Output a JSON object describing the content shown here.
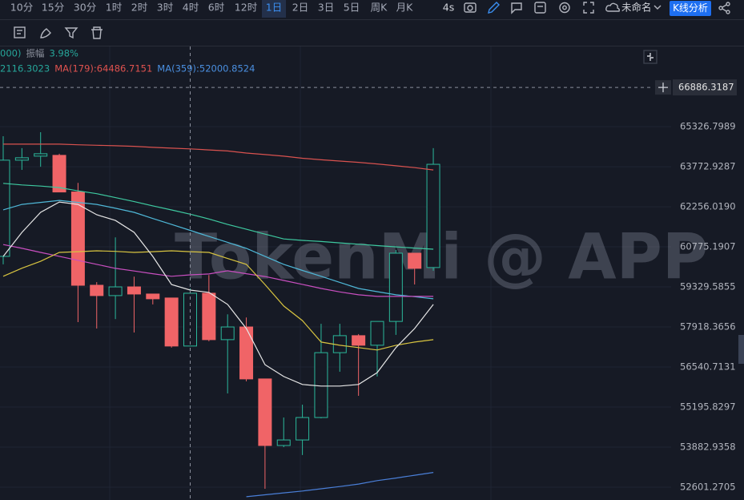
{
  "toolbar": {
    "intervals": [
      "10分",
      "15分",
      "30分",
      "1时",
      "2时",
      "3时",
      "4时",
      "6时",
      "12时",
      "1日",
      "2日",
      "3日",
      "5日",
      "周K",
      "月K"
    ],
    "selected_index": 9,
    "refresh": "4s",
    "layout_name": "未命名",
    "analysis_button": "K线分析"
  },
  "info": {
    "row1": [
      "000)",
      "振幅",
      "3.98%"
    ],
    "row2": [
      "2116.3023",
      "MA(179):64486.7151",
      "MA(359):52000.8524"
    ]
  },
  "chart_data": {
    "type": "candlestick",
    "watermark": "TokenMi @ APP",
    "log_scale": true,
    "grid": true,
    "ylim": [
      52197,
      68553
    ],
    "yticks": [
      52601.2705,
      53882.9358,
      55195.8297,
      56540.7131,
      57918.3656,
      59329.5855,
      60775.1907,
      {
        "value": 62256.019,
        "label": "62256.0190"
      },
      63772.9287,
      65326.7989
    ],
    "crosshair": 66886.3187,
    "up_color": "#2bb89b",
    "down_color": "#f06467",
    "open": [
      60428,
      64025,
      64180,
      64211,
      62813,
      59388,
      59020,
      59330,
      59076,
      58935,
      57258,
      59104,
      57478,
      57918,
      56137,
      53935,
      54115,
      54850,
      57030,
      57616,
      57285,
      58111,
      60544,
      60024
    ],
    "high": [
      64955,
      64490,
      65110,
      64273,
      63156,
      59500,
      61122,
      59697,
      59076,
      58935,
      59274,
      59754,
      58359,
      58249,
      56137,
      54850,
      55275,
      58028,
      58028,
      57671,
      58111,
      60660,
      60544,
      64490
    ],
    "low": [
      60139,
      63653,
      63773,
      62813,
      58087,
      57863,
      58193,
      57726,
      58708,
      57203,
      57258,
      57423,
      55650,
      56057,
      52550,
      53883,
      53627,
      54824,
      56380,
      55570,
      56218,
      57643,
      59415,
      59909
    ],
    "close": [
      64025,
      64118,
      64273,
      62813,
      59388,
      59020,
      59330,
      59076,
      58907,
      57258,
      59104,
      57478,
      57918,
      56137,
      53935,
      54115,
      54850,
      57030,
      57616,
      57285,
      58111,
      60544,
      59995,
      63866
    ],
    "series": [
      {
        "color": "#d9524f",
        "values": [
          64645,
          64645,
          64645,
          64645,
          64620,
          64600,
          64583,
          64560,
          64520,
          64490,
          64460,
          64420,
          64380,
          64300,
          64240,
          64180,
          64100,
          64040,
          63990,
          63940,
          63880,
          63810,
          63740,
          63650
        ]
      },
      {
        "color": "#3ec9a0",
        "values": [
          63140,
          63080,
          63036,
          62980,
          62856,
          62750,
          62600,
          62450,
          62290,
          62138,
          61980,
          61800,
          61600,
          61420,
          61240,
          61063,
          61010,
          60970,
          60920,
          60870,
          60820,
          60775,
          60730,
          60688
        ]
      },
      {
        "color": "#4fb8d8",
        "values": [
          62140,
          62346,
          62420,
          62496,
          62420,
          62346,
          62200,
          62049,
          61820,
          61599,
          61380,
          61157,
          60940,
          60718,
          60430,
          60139,
          59920,
          59708,
          59490,
          59274,
          59160,
          59048,
          58980,
          58907
        ]
      },
      {
        "color": "#c94fc0",
        "values": [
          60860,
          60720,
          60573,
          60430,
          60284,
          60140,
          59995,
          59900,
          59800,
          59708,
          59760,
          59794,
          59909,
          59800,
          59700,
          59560,
          59420,
          59274,
          59150,
          59050,
          58991,
          58991,
          58991,
          58991
        ]
      },
      {
        "color": "#d8c440",
        "values": [
          59708,
          60000,
          60250,
          60573,
          60600,
          60631,
          60610,
          60573,
          60600,
          60631,
          60600,
          60573,
          60350,
          60139,
          59415,
          58651,
          58139,
          57395,
          57285,
          57203,
          57121,
          57285,
          57395,
          57478
        ]
      },
      {
        "color": "#e6e6e6",
        "values": [
          60428,
          61306,
          62049,
          62436,
          62346,
          61958,
          61747,
          61306,
          60428,
          59415,
          59218,
          59133,
          58708,
          57863,
          56620,
          56218,
          55950,
          55897,
          55897,
          55950,
          56352,
          57203,
          57863,
          58708
        ]
      },
      {
        "color": "#4a7fd8",
        "values": [
          null,
          null,
          null,
          null,
          null,
          null,
          null,
          null,
          null,
          null,
          null,
          null,
          null,
          52300,
          52360,
          52420,
          52480,
          52550,
          52620,
          52700,
          52808,
          52890,
          52980,
          53070
        ]
      }
    ]
  }
}
